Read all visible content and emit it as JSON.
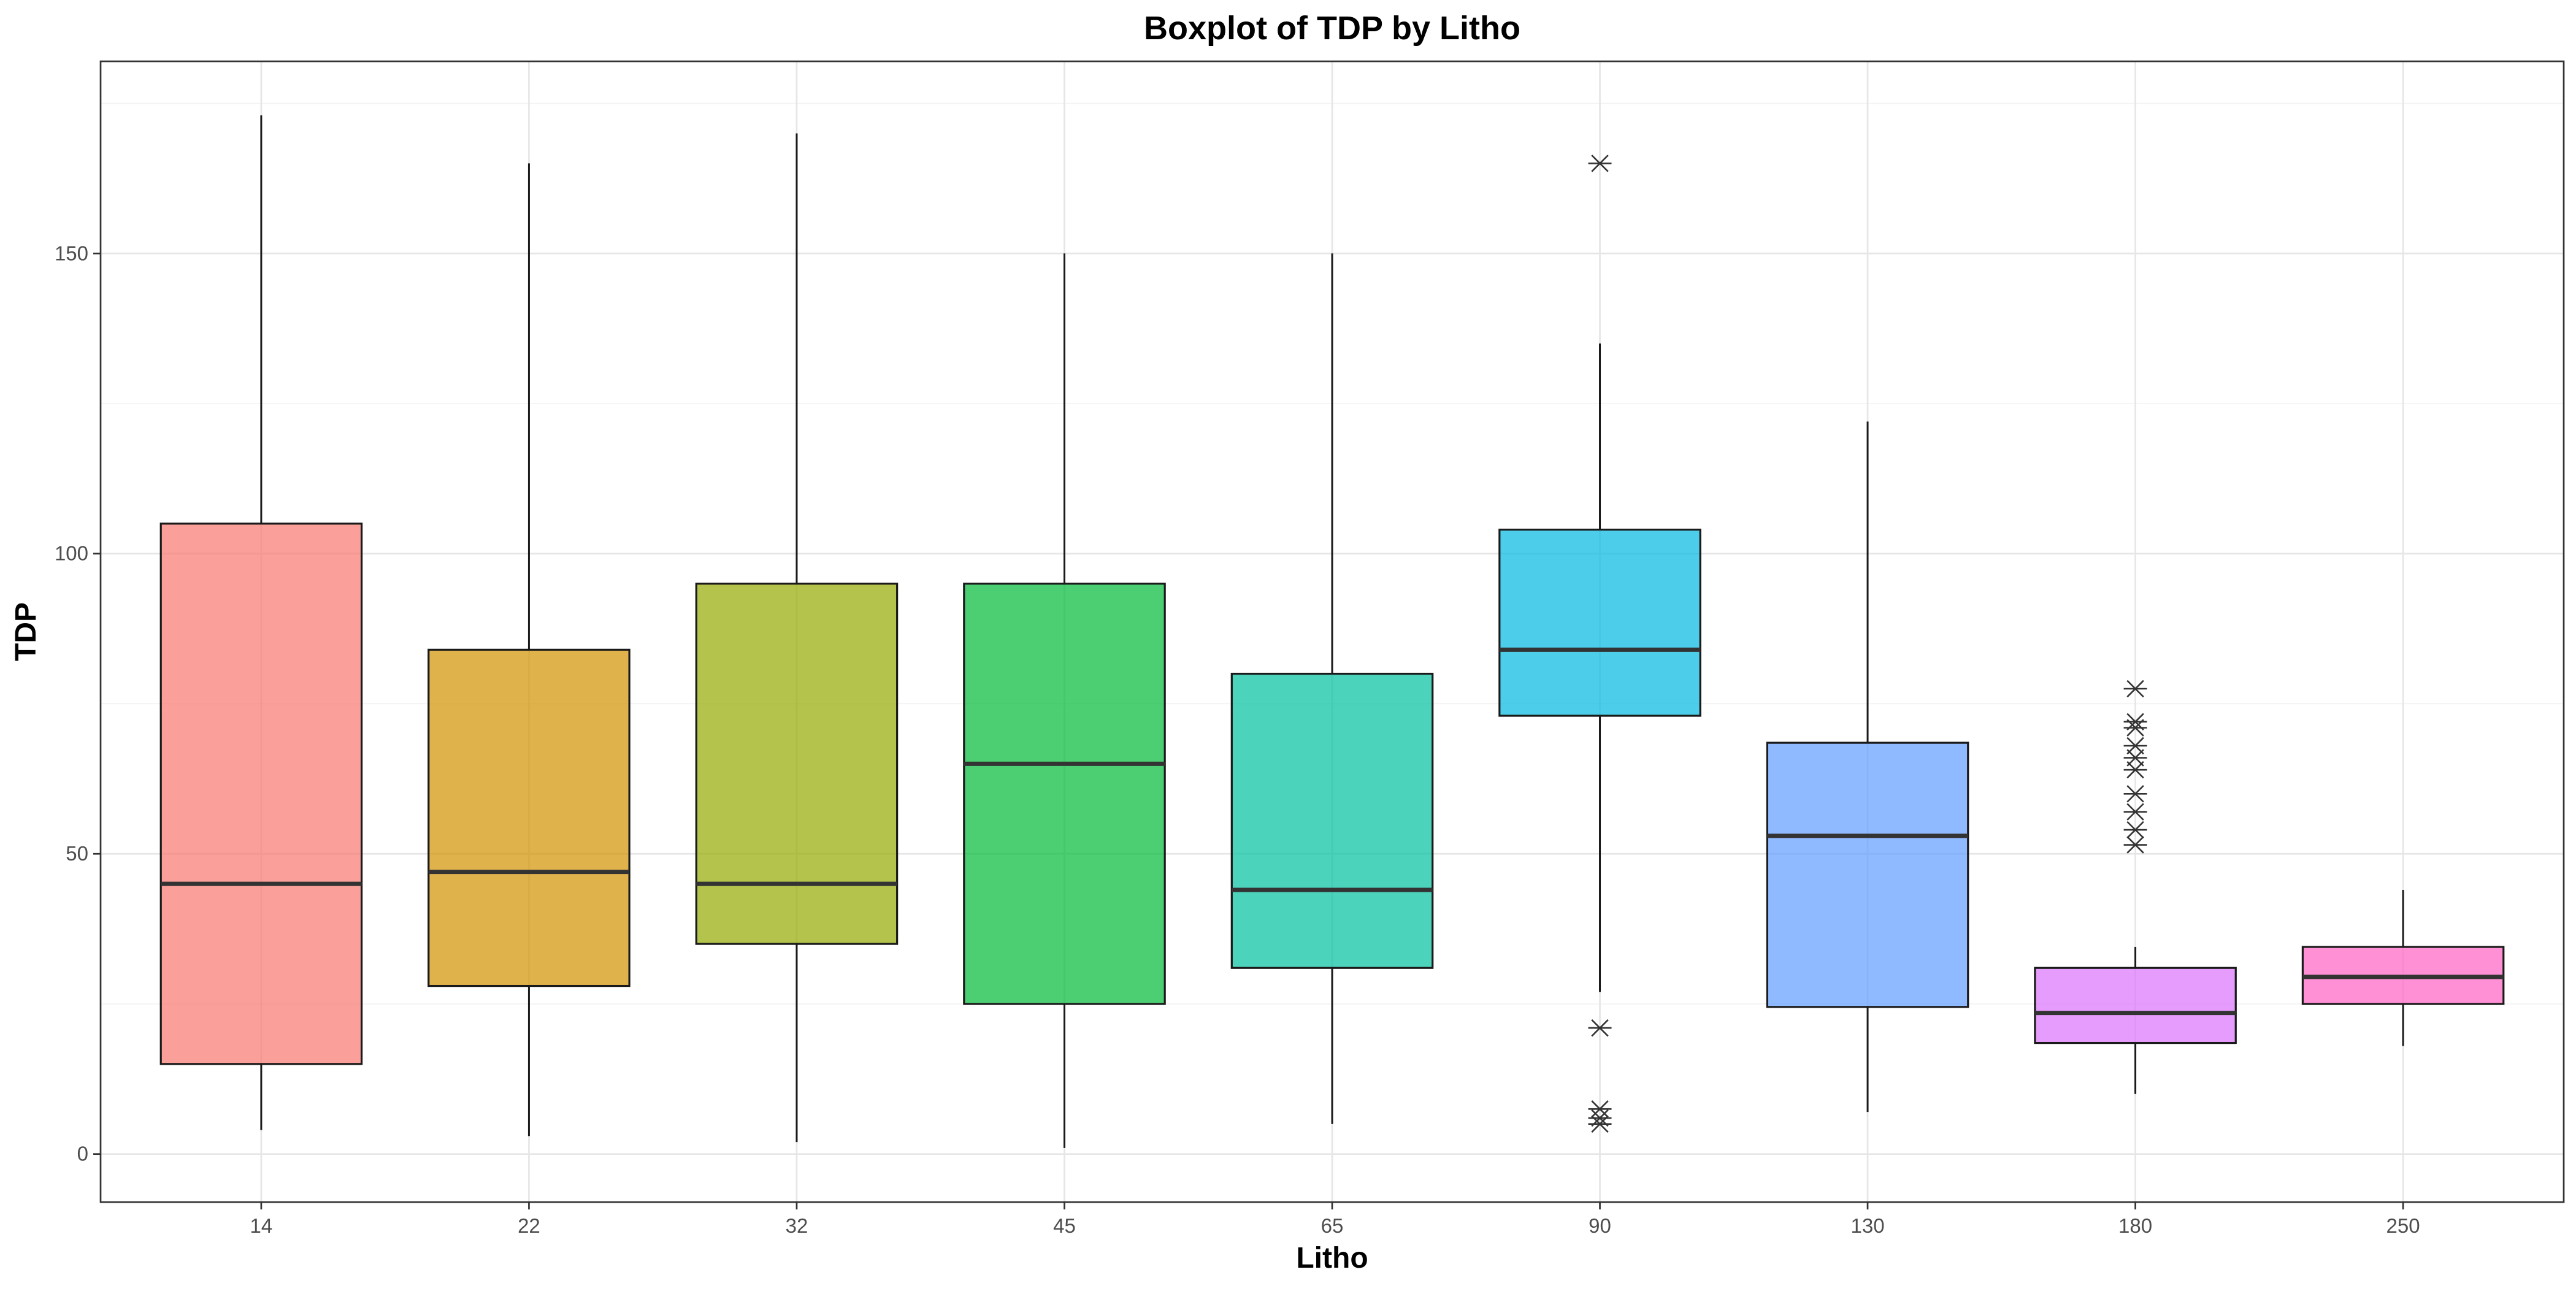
{
  "chart_data": {
    "type": "boxplot",
    "title": "Boxplot of TDP by Litho",
    "xlabel": "Litho",
    "ylabel": "TDP",
    "ylim": [
      -8,
      182
    ],
    "y_ticks": [
      0,
      50,
      100,
      150
    ],
    "grid": true,
    "legend": "none",
    "categories": [
      "14",
      "22",
      "32",
      "45",
      "65",
      "90",
      "130",
      "180",
      "250"
    ],
    "boxes": [
      {
        "category": "14",
        "whisker_low": 4,
        "q1": 15,
        "median": 45,
        "q3": 105,
        "whisker_high": 173,
        "outliers": [],
        "color": "#F8766D"
      },
      {
        "category": "22",
        "whisker_low": 3,
        "q1": 28,
        "median": 47,
        "q3": 84,
        "whisker_high": 165,
        "outliers": [],
        "color": "#D39200"
      },
      {
        "category": "32",
        "whisker_low": 2,
        "q1": 35,
        "median": 45,
        "q3": 95,
        "whisker_high": 170,
        "outliers": [],
        "color": "#93AA00"
      },
      {
        "category": "45",
        "whisker_low": 1,
        "q1": 25,
        "median": 65,
        "q3": 95,
        "whisker_high": 150,
        "outliers": [],
        "color": "#00BA38"
      },
      {
        "category": "65",
        "whisker_low": 5,
        "q1": 31,
        "median": 44,
        "q3": 80,
        "whisker_high": 150,
        "outliers": [],
        "color": "#00C19F"
      },
      {
        "category": "90",
        "whisker_low": 27,
        "q1": 73,
        "median": 84,
        "q3": 104,
        "whisker_high": 135,
        "outliers": [
          165,
          21,
          7.5,
          6,
          5
        ],
        "color": "#00B9E3"
      },
      {
        "category": "130",
        "whisker_low": 7,
        "q1": 24.5,
        "median": 53,
        "q3": 68.5,
        "whisker_high": 122,
        "outliers": [],
        "color": "#619CFF"
      },
      {
        "category": "180",
        "whisker_low": 10,
        "q1": 18.5,
        "median": 23.5,
        "q3": 31,
        "whisker_high": 34.5,
        "outliers": [
          77.5,
          72,
          71,
          68,
          66,
          64,
          60,
          57,
          54,
          51.5
        ],
        "color": "#DB72FB"
      },
      {
        "category": "250",
        "whisker_low": 18,
        "q1": 25,
        "median": 29.5,
        "q3": 34.5,
        "whisker_high": 44,
        "outliers": [],
        "color": "#FF61C3"
      }
    ]
  }
}
